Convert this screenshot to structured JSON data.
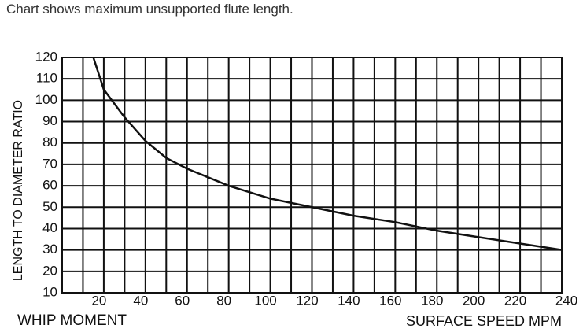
{
  "caption": "Chart shows maximum unsupported flute length.",
  "chart_data": {
    "type": "line",
    "xlabel": "SURFACE SPEED MPM",
    "ylabel": "LENGTH TO DIAMETER RATIO",
    "annotation": "WHIP MOMENT",
    "x": [
      15,
      20,
      30,
      40,
      50,
      60,
      80,
      100,
      120,
      140,
      160,
      180,
      200,
      220,
      240
    ],
    "series": [
      {
        "name": "Maximum unsupported flute length",
        "color": "#111111",
        "values": [
          120,
          105,
          92,
          81,
          73,
          68,
          60,
          54,
          50,
          46,
          43,
          39,
          36,
          33,
          30
        ]
      }
    ],
    "xlim": [
      0,
      240
    ],
    "xticks": [
      20,
      40,
      60,
      80,
      100,
      120,
      140,
      160,
      180,
      200,
      220,
      240
    ],
    "ylim": [
      10,
      120
    ],
    "yticks": [
      10,
      20,
      30,
      40,
      50,
      60,
      70,
      80,
      90,
      100,
      110,
      120
    ],
    "grid": true,
    "legend": false
  }
}
